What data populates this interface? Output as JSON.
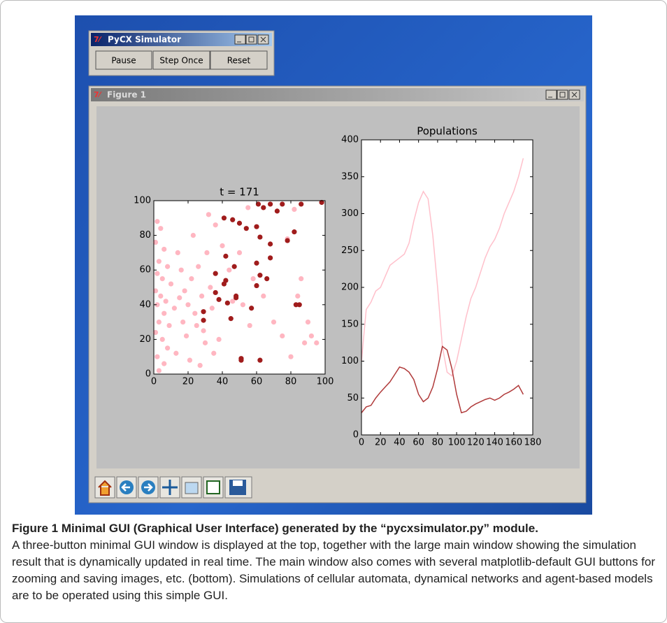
{
  "windows": {
    "simulator": {
      "title": "PyCX Simulator",
      "buttons": [
        "Pause",
        "Step Once",
        "Reset"
      ]
    },
    "figure": {
      "title": "Figure 1"
    }
  },
  "chart_data": [
    {
      "type": "scatter",
      "title": "t = 171",
      "xlim": [
        0,
        100
      ],
      "ylim": [
        0,
        100
      ],
      "xticks": [
        0,
        20,
        40,
        60,
        80,
        100
      ],
      "yticks": [
        0,
        20,
        40,
        60,
        80,
        100
      ],
      "series": [
        {
          "color": "#ffb6c1",
          "x": [
            2,
            4,
            1,
            6,
            3,
            8,
            2,
            5,
            10,
            1,
            4,
            7,
            2,
            12,
            6,
            3,
            9,
            1,
            5,
            8,
            2,
            6,
            3,
            14,
            16,
            18,
            15,
            20,
            22,
            24,
            17,
            19,
            13,
            21,
            26,
            28,
            25,
            30,
            27,
            23,
            31,
            33,
            34,
            29,
            35,
            38,
            32,
            36,
            40,
            44,
            46,
            52,
            56,
            50,
            55,
            58,
            64,
            70,
            75,
            78,
            82,
            86,
            88,
            92,
            95,
            90,
            80,
            84
          ],
          "y": [
            88,
            84,
            76,
            72,
            65,
            62,
            58,
            55,
            52,
            48,
            45,
            42,
            40,
            38,
            35,
            30,
            28,
            24,
            20,
            15,
            10,
            6,
            2,
            70,
            60,
            48,
            44,
            40,
            55,
            35,
            30,
            22,
            12,
            8,
            62,
            45,
            28,
            18,
            5,
            80,
            70,
            50,
            38,
            25,
            12,
            20,
            92,
            86,
            74,
            60,
            42,
            40,
            28,
            70,
            96,
            55,
            45,
            30,
            22,
            78,
            95,
            55,
            18,
            22,
            18,
            30,
            10,
            45
          ]
        },
        {
          "color": "#a01c1c",
          "x": [
            61,
            64,
            68,
            75,
            86,
            98,
            41,
            46,
            50,
            54,
            60,
            62,
            68,
            72,
            78,
            82,
            68,
            42,
            36,
            42,
            41,
            47,
            60,
            62,
            66,
            60,
            36,
            38,
            43,
            48,
            48,
            57,
            29,
            29,
            45,
            83,
            85,
            51,
            51,
            62
          ],
          "y": [
            98,
            96,
            98,
            98,
            98,
            99,
            90,
            89,
            87,
            84,
            85,
            79,
            75,
            94,
            77,
            82,
            67,
            68,
            58,
            54,
            52,
            62,
            64,
            57,
            55,
            51,
            47,
            43,
            41,
            45,
            44,
            38,
            36,
            31,
            32,
            40,
            40,
            9,
            8,
            8
          ]
        }
      ]
    },
    {
      "type": "line",
      "title": "Populations",
      "xlim": [
        0,
        180
      ],
      "ylim": [
        0,
        400
      ],
      "xticks": [
        0,
        20,
        40,
        60,
        80,
        100,
        120,
        140,
        160,
        180
      ],
      "yticks": [
        0,
        50,
        100,
        150,
        200,
        250,
        300,
        350,
        400
      ],
      "x": [
        0,
        5,
        10,
        15,
        20,
        25,
        30,
        35,
        40,
        45,
        50,
        55,
        60,
        65,
        70,
        75,
        80,
        85,
        90,
        95,
        100,
        105,
        110,
        115,
        120,
        125,
        130,
        135,
        140,
        145,
        150,
        155,
        160,
        165,
        170
      ],
      "series": [
        {
          "color": "#ffc0cb",
          "values": [
            100,
            170,
            180,
            195,
            200,
            215,
            230,
            235,
            240,
            245,
            260,
            290,
            315,
            330,
            320,
            270,
            200,
            120,
            85,
            80,
            100,
            130,
            160,
            185,
            200,
            220,
            240,
            255,
            265,
            280,
            300,
            315,
            330,
            350,
            375
          ]
        },
        {
          "color": "#b03a3a",
          "values": [
            30,
            38,
            40,
            50,
            58,
            65,
            72,
            82,
            92,
            90,
            85,
            75,
            55,
            45,
            50,
            65,
            90,
            120,
            115,
            90,
            55,
            30,
            32,
            38,
            42,
            45,
            48,
            50,
            47,
            50,
            55,
            58,
            62,
            67,
            55
          ]
        }
      ]
    }
  ],
  "caption": {
    "title": "Figure 1 Minimal GUI (Graphical User Interface) generated by the “pycxsimulator.py” module.",
    "text": "A three-button minimal GUI window is displayed at the top, together with the large main window showing the simulation result that is dynamically updated in real time. The main window also comes with several matplotlib-default GUI buttons for zooming and saving images, etc. (bottom). Simulations of cellular automata, dynamical networks and agent-based models are to be operated using this simple GUI."
  }
}
